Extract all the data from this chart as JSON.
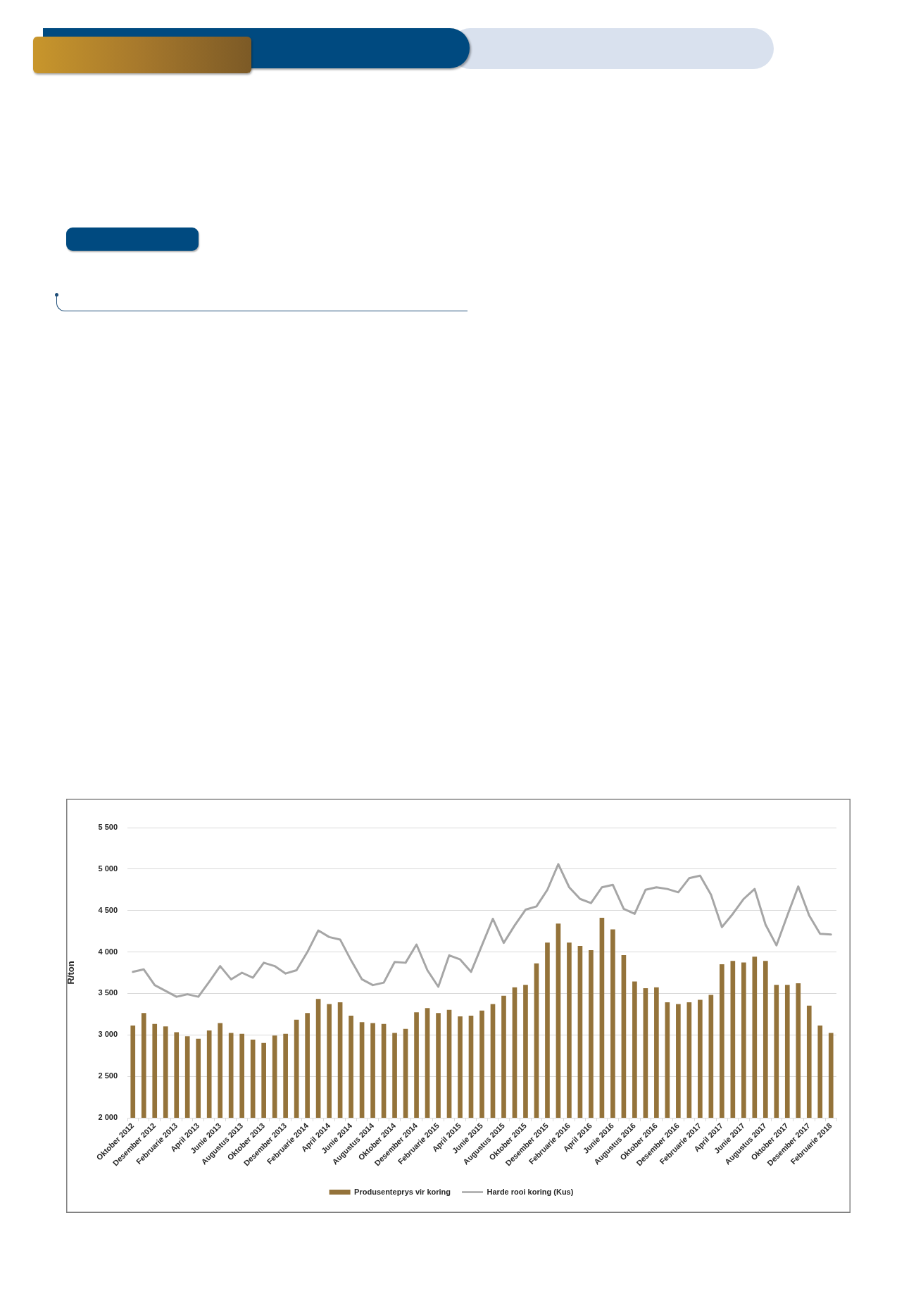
{
  "chart_data": {
    "type": "bar",
    "ylabel": "R/ton",
    "categories": [
      "Oktober 2012",
      null,
      "Desember 2012",
      null,
      "Februarie 2013",
      null,
      "April 2013",
      null,
      "Junie 2013",
      null,
      "Augustus 2013",
      null,
      "Oktober 2013",
      null,
      "Desember 2013",
      null,
      "Februarie 2014",
      null,
      "April 2014",
      null,
      "Junie 2014",
      null,
      "Augustus 2014",
      null,
      "Oktober 2014",
      null,
      "Desember 2014",
      null,
      "Februarie 2015",
      null,
      "April 2015",
      null,
      "Junie 2015",
      null,
      "Augustus 2015",
      null,
      "Oktober 2015",
      null,
      "Desember 2015",
      null,
      "Februarie 2016",
      null,
      "April 2016",
      null,
      "Junie 2016",
      null,
      "Augustus 2016",
      null,
      "Oktober 2016",
      null,
      "Desember 2016",
      null,
      "Februarie 2017",
      null,
      "April 2017",
      null,
      "Junie 2017",
      null,
      "Augustus 2017",
      null,
      "Oktober 2017",
      null,
      "Desember 2017",
      null,
      "Februarie 2018"
    ],
    "series": [
      {
        "name": "Produsenteprys vir koring",
        "color": "#94733a",
        "values": [
          3110,
          3260,
          3130,
          3100,
          3030,
          2980,
          2950,
          3050,
          3140,
          3020,
          3010,
          2940,
          2900,
          2990,
          3010,
          3180,
          3260,
          3430,
          3370,
          3390,
          3230,
          3150,
          3140,
          3130,
          3020,
          3070,
          3270,
          3320,
          3260,
          3300,
          3220,
          3230,
          3290,
          3370,
          3470,
          3570,
          3600,
          3860,
          4110,
          4340,
          4110,
          4070,
          4020,
          4410,
          4270,
          3960,
          3640,
          3560,
          3570,
          3390,
          3370,
          3390,
          3420,
          3480,
          3850,
          3890,
          3870,
          3940,
          3890,
          3600,
          3600,
          3620,
          3350,
          3110,
          3020
        ]
      },
      {
        "name": "Harde rooi koring (Kus)",
        "type": "line",
        "color": "#a6a6a6",
        "values": [
          3760,
          3790,
          3600,
          3530,
          3460,
          3490,
          3460,
          3640,
          3830,
          3670,
          3750,
          3690,
          3870,
          3830,
          3740,
          3780,
          4000,
          4260,
          4180,
          4150,
          3900,
          3670,
          3600,
          3630,
          3880,
          3870,
          4090,
          3780,
          3580,
          3960,
          3910,
          3760,
          4080,
          4400,
          4110,
          4320,
          4510,
          4550,
          4750,
          5060,
          4780,
          4640,
          4590,
          4780,
          4810,
          4520,
          4460,
          4750,
          4780,
          4760,
          4720,
          4890,
          4920,
          4690,
          4300,
          4460,
          4640,
          4760,
          4330,
          4080,
          4440,
          4790,
          4440,
          4220,
          4210
        ]
      }
    ],
    "ylim": [
      2000,
      5500
    ],
    "yticks": [
      {
        "value": 2000,
        "label": "2 000"
      },
      {
        "value": 2500,
        "label": "2 500"
      },
      {
        "value": 3000,
        "label": "3 000"
      },
      {
        "value": 3500,
        "label": "3 500"
      },
      {
        "value": 4000,
        "label": "4 000"
      },
      {
        "value": 4500,
        "label": "4 500"
      },
      {
        "value": 5000,
        "label": "5 000"
      },
      {
        "value": 5500,
        "label": "5 500"
      }
    ],
    "grid": "y",
    "legend": "bottom"
  }
}
